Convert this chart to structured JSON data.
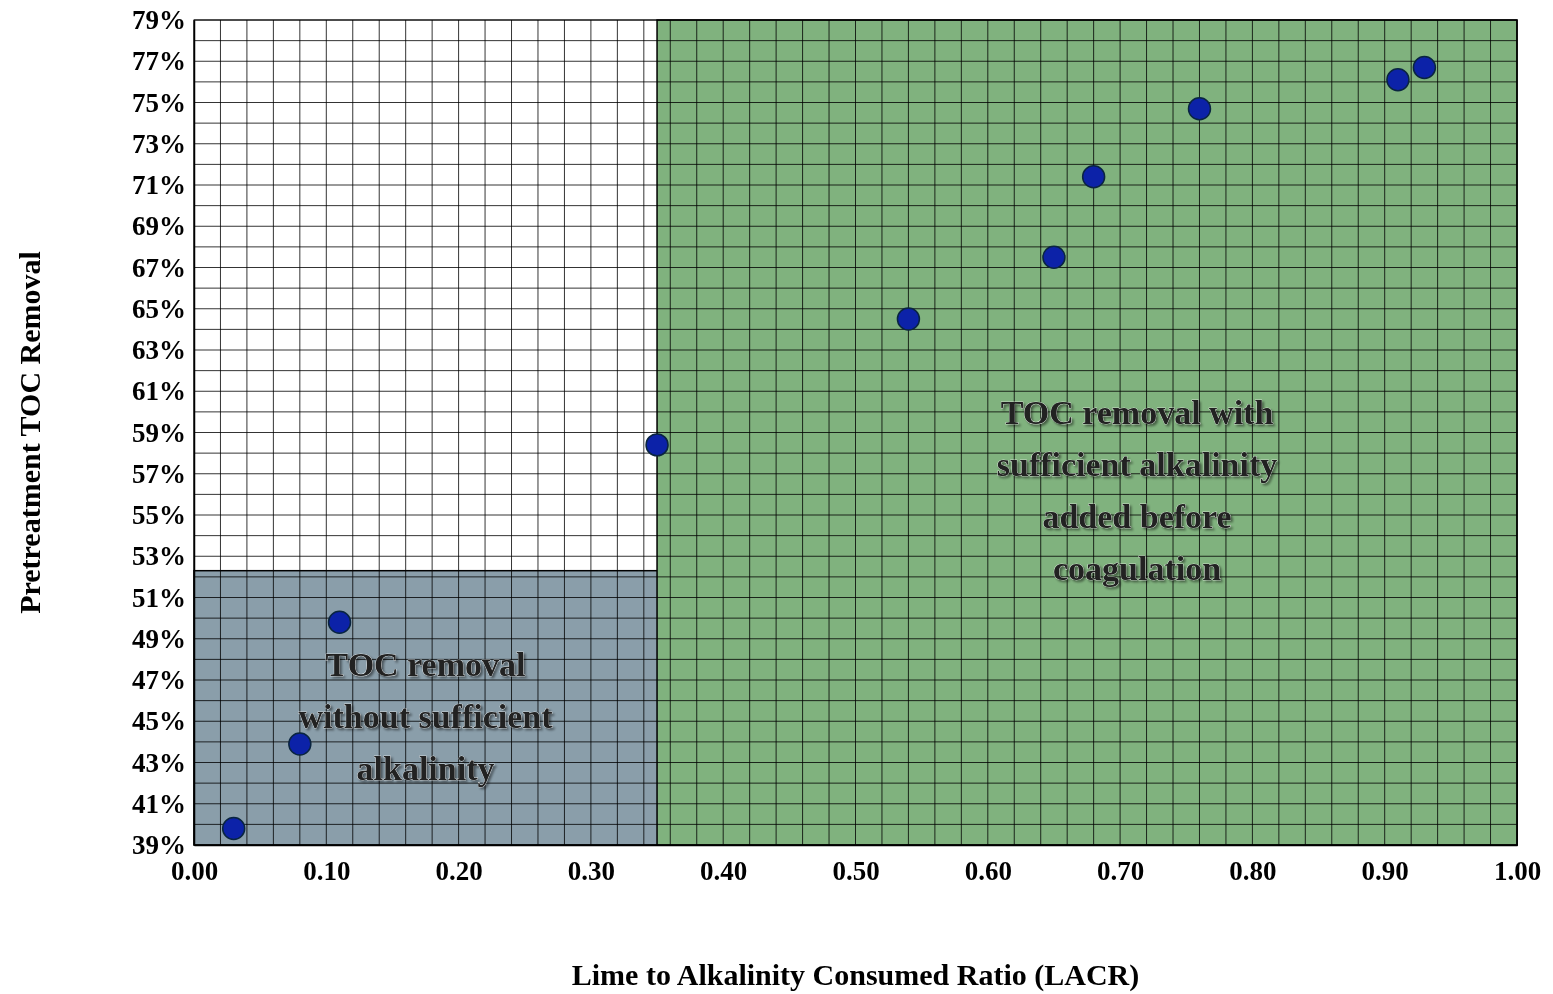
{
  "chart_data": {
    "type": "scatter",
    "xlabel": "Lime to Alkalinity Consumed Ratio (LACR)",
    "ylabel": "Pretreatment TOC Removal",
    "x": [
      0.03,
      0.08,
      0.11,
      0.35,
      0.54,
      0.65,
      0.68,
      0.76,
      0.91,
      0.93
    ],
    "series": [
      {
        "color": "#0c22a8",
        "values": [
          39.8,
          43.9,
          49.8,
          58.4,
          64.5,
          67.5,
          71.4,
          74.7,
          76.1,
          76.7
        ]
      }
    ],
    "marker": "circle",
    "grid": true,
    "xlim": [
      0,
      1
    ],
    "ylim": [
      39,
      79
    ],
    "xticks": [
      {
        "value": 0,
        "label": "0.00"
      },
      {
        "value": 0.02,
        "label": null
      },
      {
        "value": 0.04,
        "label": null
      },
      {
        "value": 0.06,
        "label": null
      },
      {
        "value": 0.08,
        "label": null
      },
      {
        "value": 0.1,
        "label": "0.10"
      },
      {
        "value": 0.12,
        "label": null
      },
      {
        "value": 0.14,
        "label": null
      },
      {
        "value": 0.16,
        "label": null
      },
      {
        "value": 0.18,
        "label": null
      },
      {
        "value": 0.2,
        "label": "0.20"
      },
      {
        "value": 0.22,
        "label": null
      },
      {
        "value": 0.24,
        "label": null
      },
      {
        "value": 0.26,
        "label": null
      },
      {
        "value": 0.28,
        "label": null
      },
      {
        "value": 0.3,
        "label": "0.30"
      },
      {
        "value": 0.32,
        "label": null
      },
      {
        "value": 0.34,
        "label": null
      },
      {
        "value": 0.36,
        "label": null
      },
      {
        "value": 0.38,
        "label": null
      },
      {
        "value": 0.4,
        "label": "0.40"
      },
      {
        "value": 0.42,
        "label": null
      },
      {
        "value": 0.44,
        "label": null
      },
      {
        "value": 0.46,
        "label": null
      },
      {
        "value": 0.48,
        "label": null
      },
      {
        "value": 0.5,
        "label": "0.50"
      },
      {
        "value": 0.52,
        "label": null
      },
      {
        "value": 0.54,
        "label": null
      },
      {
        "value": 0.56,
        "label": null
      },
      {
        "value": 0.58,
        "label": null
      },
      {
        "value": 0.6,
        "label": "0.60"
      },
      {
        "value": 0.62,
        "label": null
      },
      {
        "value": 0.64,
        "label": null
      },
      {
        "value": 0.66,
        "label": null
      },
      {
        "value": 0.68,
        "label": null
      },
      {
        "value": 0.7,
        "label": "0.70"
      },
      {
        "value": 0.72,
        "label": null
      },
      {
        "value": 0.74,
        "label": null
      },
      {
        "value": 0.76,
        "label": null
      },
      {
        "value": 0.78,
        "label": null
      },
      {
        "value": 0.8,
        "label": "0.80"
      },
      {
        "value": 0.82,
        "label": null
      },
      {
        "value": 0.84,
        "label": null
      },
      {
        "value": 0.86,
        "label": null
      },
      {
        "value": 0.88,
        "label": null
      },
      {
        "value": 0.9,
        "label": "0.90"
      },
      {
        "value": 0.92,
        "label": null
      },
      {
        "value": 0.94,
        "label": null
      },
      {
        "value": 0.96,
        "label": null
      },
      {
        "value": 0.98,
        "label": null
      },
      {
        "value": 1,
        "label": "1.00"
      }
    ],
    "yticks": [
      {
        "value": 39,
        "label": "39%"
      },
      {
        "value": 40,
        "label": null
      },
      {
        "value": 41,
        "label": "41%"
      },
      {
        "value": 42,
        "label": null
      },
      {
        "value": 43,
        "label": "43%"
      },
      {
        "value": 44,
        "label": null
      },
      {
        "value": 45,
        "label": "45%"
      },
      {
        "value": 46,
        "label": null
      },
      {
        "value": 47,
        "label": "47%"
      },
      {
        "value": 48,
        "label": null
      },
      {
        "value": 49,
        "label": "49%"
      },
      {
        "value": 50,
        "label": null
      },
      {
        "value": 51,
        "label": "51%"
      },
      {
        "value": 52,
        "label": null
      },
      {
        "value": 53,
        "label": "53%"
      },
      {
        "value": 54,
        "label": null
      },
      {
        "value": 55,
        "label": "55%"
      },
      {
        "value": 56,
        "label": null
      },
      {
        "value": 57,
        "label": "57%"
      },
      {
        "value": 58,
        "label": null
      },
      {
        "value": 59,
        "label": "59%"
      },
      {
        "value": 60,
        "label": null
      },
      {
        "value": 61,
        "label": "61%"
      },
      {
        "value": 62,
        "label": null
      },
      {
        "value": 63,
        "label": "63%"
      },
      {
        "value": 64,
        "label": null
      },
      {
        "value": 65,
        "label": "65%"
      },
      {
        "value": 66,
        "label": null
      },
      {
        "value": 67,
        "label": "67%"
      },
      {
        "value": 68,
        "label": null
      },
      {
        "value": 69,
        "label": "69%"
      },
      {
        "value": 70,
        "label": null
      },
      {
        "value": 71,
        "label": "71%"
      },
      {
        "value": 72,
        "label": null
      },
      {
        "value": 73,
        "label": "73%"
      },
      {
        "value": 74,
        "label": null
      },
      {
        "value": 75,
        "label": "75%"
      },
      {
        "value": 76,
        "label": null
      },
      {
        "value": 77,
        "label": "77%"
      },
      {
        "value": 78,
        "label": null
      },
      {
        "value": 79,
        "label": "79%"
      }
    ],
    "bands": [
      {
        "axis": "y",
        "from": 39,
        "to": 52.3,
        "color": "#8a9eaa",
        "label": "TOC removal without sufficient alkalinity"
      },
      {
        "axis": "x",
        "from": 0.35,
        "to": 1,
        "color": "#80b27e",
        "label": "TOC removal with sufficient alkalinity added before coagulation"
      }
    ]
  }
}
